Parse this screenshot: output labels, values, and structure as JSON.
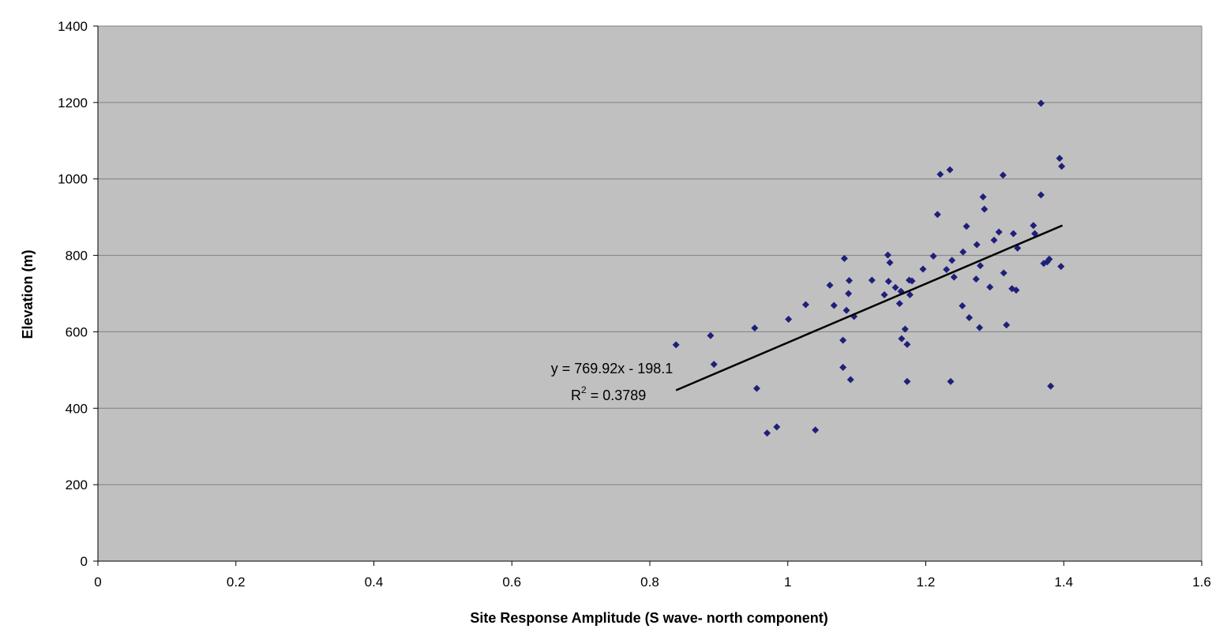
{
  "chart_data": {
    "type": "scatter",
    "xlabel": "Site Response Amplitude (S wave- north component)",
    "ylabel": "Elevation (m)",
    "xlim": [
      0,
      1.6
    ],
    "ylim": [
      0,
      1400
    ],
    "x_ticks": [
      "0",
      "0.2",
      "0.4",
      "0.6",
      "0.8",
      "1",
      "1.2",
      "1.4",
      "1.6"
    ],
    "y_ticks": [
      "0",
      "200",
      "400",
      "600",
      "800",
      "1000",
      "1200",
      "1400"
    ],
    "grid": "horizontal",
    "colors": {
      "plot_background": "#c0c0c0",
      "marker": "#1f1f7a",
      "trendline": "#000000"
    },
    "series": [
      {
        "marker": "diamond",
        "points": [
          [
            0.838,
            566
          ],
          [
            0.888,
            590
          ],
          [
            0.893,
            515
          ],
          [
            0.952,
            610
          ],
          [
            0.955,
            452
          ],
          [
            0.97,
            335
          ],
          [
            0.984,
            351
          ],
          [
            1.001,
            633
          ],
          [
            1.026,
            671
          ],
          [
            1.04,
            343
          ],
          [
            1.061,
            722
          ],
          [
            1.067,
            669
          ],
          [
            1.08,
            578
          ],
          [
            1.08,
            507
          ],
          [
            1.082,
            792
          ],
          [
            1.085,
            656
          ],
          [
            1.088,
            700
          ],
          [
            1.089,
            734
          ],
          [
            1.091,
            475
          ],
          [
            1.096,
            640
          ],
          [
            1.122,
            735
          ],
          [
            1.14,
            697
          ],
          [
            1.145,
            801
          ],
          [
            1.146,
            732
          ],
          [
            1.148,
            781
          ],
          [
            1.156,
            716
          ],
          [
            1.162,
            674
          ],
          [
            1.164,
            706
          ],
          [
            1.165,
            582
          ],
          [
            1.17,
            607
          ],
          [
            1.173,
            567
          ],
          [
            1.173,
            470
          ],
          [
            1.176,
            735
          ],
          [
            1.177,
            697
          ],
          [
            1.18,
            733
          ],
          [
            1.196,
            764
          ],
          [
            1.211,
            798
          ],
          [
            1.217,
            907
          ],
          [
            1.221,
            1012
          ],
          [
            1.23,
            763
          ],
          [
            1.235,
            1024
          ],
          [
            1.236,
            470
          ],
          [
            1.238,
            787
          ],
          [
            1.241,
            743
          ],
          [
            1.253,
            668
          ],
          [
            1.254,
            809
          ],
          [
            1.259,
            876
          ],
          [
            1.263,
            637
          ],
          [
            1.273,
            738
          ],
          [
            1.274,
            828
          ],
          [
            1.278,
            611
          ],
          [
            1.279,
            773
          ],
          [
            1.283,
            953
          ],
          [
            1.285,
            921
          ],
          [
            1.293,
            717
          ],
          [
            1.299,
            840
          ],
          [
            1.306,
            861
          ],
          [
            1.312,
            1010
          ],
          [
            1.313,
            754
          ],
          [
            1.317,
            618
          ],
          [
            1.325,
            713
          ],
          [
            1.327,
            857
          ],
          [
            1.331,
            709
          ],
          [
            1.333,
            819
          ],
          [
            1.356,
            878
          ],
          [
            1.358,
            857
          ],
          [
            1.367,
            958
          ],
          [
            1.367,
            1198
          ],
          [
            1.371,
            779
          ],
          [
            1.376,
            783
          ],
          [
            1.379,
            790
          ],
          [
            1.381,
            458
          ],
          [
            1.394,
            1054
          ],
          [
            1.396,
            771
          ],
          [
            1.397,
            1033
          ]
        ]
      }
    ],
    "trendline": {
      "slope": 769.92,
      "intercept": -198.1,
      "x_range": [
        0.838,
        1.398
      ],
      "equation": "y = 769.92x - 198.1",
      "r2_prefix": "R",
      "r2_sup": "2",
      "r2_value": " = 0.3789"
    }
  }
}
